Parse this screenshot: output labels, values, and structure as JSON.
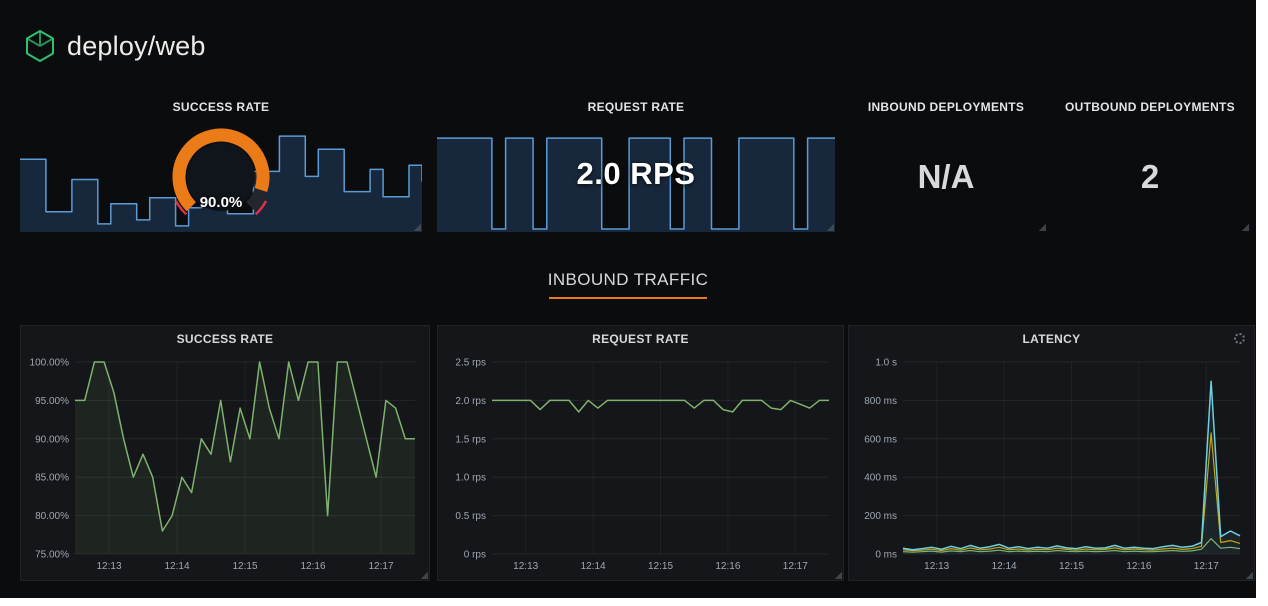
{
  "header": {
    "title": "deploy/web"
  },
  "colors": {
    "background": "#0b0c0e",
    "panel": "#141619",
    "accent_orange": "#eb7b18",
    "spark_line": "#5b9bd5",
    "spark_fill": "#18283c",
    "green": "#7eb26d",
    "yellow": "#cca300",
    "cyan": "#6ed0e0",
    "red": "#e02f44",
    "logo_green": "#2fbf71",
    "text": "#d8d9da",
    "axis_text": "#9fa7b3"
  },
  "top_row": {
    "success_rate": {
      "title": "SUCCESS RATE"
    },
    "request_rate": {
      "title": "REQUEST RATE",
      "value": "2.0 RPS"
    },
    "inbound_deployments": {
      "title": "INBOUND DEPLOYMENTS",
      "value": "N/A"
    },
    "outbound_deployments": {
      "title": "OUTBOUND DEPLOYMENTS",
      "value": "2"
    }
  },
  "gauge": {
    "percent": 90,
    "label": "90.0%",
    "color": "#eb7b18",
    "track_color": "#23262c",
    "face_color": "#10151c",
    "threshold_color": "#e02f44"
  },
  "section": {
    "title": "INBOUND TRAFFIC",
    "underline_color": "#eb7b18"
  },
  "panels": {
    "success_rate_graph": {
      "title": "SUCCESS RATE"
    },
    "request_rate_graph": {
      "title": "REQUEST RATE"
    },
    "latency_graph": {
      "title": "LATENCY"
    }
  },
  "chart_data": {
    "success_rate_sparkline": {
      "type": "area",
      "step": true,
      "ylim": [
        0,
        100
      ],
      "margins": {
        "l": 0,
        "r": 0,
        "t": 3,
        "b": 0
      },
      "series": [
        {
          "name": "series-blue",
          "color": "#5b9bd5",
          "fill": "#18283c",
          "width": 1.5,
          "values": [
            72,
            72,
            20,
            20,
            52,
            52,
            8,
            28,
            28,
            12,
            34,
            34,
            6,
            24,
            46,
            46,
            18,
            18,
            60,
            60,
            95,
            95,
            55,
            82,
            82,
            40,
            40,
            62,
            35,
            35,
            66,
            50
          ]
        }
      ]
    },
    "request_rate_sparkline": {
      "type": "area",
      "step": true,
      "ylim": [
        0,
        100
      ],
      "margins": {
        "l": 0,
        "r": 0,
        "t": 3,
        "b": 0
      },
      "series": [
        {
          "name": "series-blue",
          "color": "#5b9bd5",
          "fill": "#18283c",
          "width": 1.5,
          "values": [
            93,
            93,
            93,
            93,
            3,
            93,
            93,
            3,
            93,
            93,
            93,
            93,
            3,
            3,
            93,
            93,
            93,
            3,
            93,
            93,
            3,
            3,
            93,
            93,
            93,
            93,
            3,
            93,
            93,
            93
          ]
        }
      ]
    },
    "success_rate_graph": {
      "type": "area",
      "title": "SUCCESS RATE",
      "ylim": [
        75,
        100
      ],
      "yticks": [
        {
          "v": 100,
          "label": "100.00%"
        },
        {
          "v": 95,
          "label": "95.00%"
        },
        {
          "v": 90,
          "label": "90.00%"
        },
        {
          "v": 85,
          "label": "85.00%"
        },
        {
          "v": 80,
          "label": "80.00%"
        },
        {
          "v": 75,
          "label": "75.00%"
        }
      ],
      "xticks": [
        "12:13",
        "12:14",
        "12:15",
        "12:16",
        "12:17"
      ],
      "margins": {
        "l": 50,
        "r": 10,
        "t": 8,
        "b": 22
      },
      "series": [
        {
          "name": "series-green",
          "color": "#7eb26d",
          "fill": "rgba(126,178,109,0.10)",
          "width": 1.5,
          "values": [
            95,
            95,
            100,
            100,
            96,
            90,
            85,
            88,
            85,
            78,
            80,
            85,
            83,
            90,
            88,
            95,
            87,
            94,
            90,
            100,
            94,
            90,
            100,
            95,
            100,
            100,
            80,
            100,
            100,
            95,
            90,
            85,
            95,
            94,
            90,
            90
          ]
        }
      ]
    },
    "request_rate_graph": {
      "type": "line",
      "title": "REQUEST RATE",
      "ylim": [
        0,
        2.5
      ],
      "yticks": [
        {
          "v": 2.5,
          "label": "2.5 rps"
        },
        {
          "v": 2.0,
          "label": "2.0 rps"
        },
        {
          "v": 1.5,
          "label": "1.5 rps"
        },
        {
          "v": 1.0,
          "label": "1.0 rps"
        },
        {
          "v": 0.5,
          "label": "0.5 rps"
        },
        {
          "v": 0,
          "label": "0 rps"
        }
      ],
      "xticks": [
        "12:13",
        "12:14",
        "12:15",
        "12:16",
        "12:17"
      ],
      "margins": {
        "l": 50,
        "r": 10,
        "t": 8,
        "b": 22
      },
      "series": [
        {
          "name": "series-green",
          "color": "#7eb26d",
          "width": 1.5,
          "values": [
            2,
            2,
            2,
            2,
            2,
            1.88,
            2,
            2,
            2,
            1.85,
            2,
            1.9,
            2,
            2,
            2,
            2,
            2,
            2,
            2,
            2,
            2,
            1.9,
            2,
            2,
            1.88,
            1.85,
            2,
            2,
            2,
            1.9,
            1.88,
            2,
            1.95,
            1.9,
            2,
            2
          ]
        }
      ]
    },
    "latency_graph": {
      "type": "line",
      "title": "LATENCY",
      "ylim": [
        0,
        1000
      ],
      "yticks": [
        {
          "v": 1000,
          "label": "1.0 s"
        },
        {
          "v": 800,
          "label": "800 ms"
        },
        {
          "v": 600,
          "label": "600 ms"
        },
        {
          "v": 400,
          "label": "400 ms"
        },
        {
          "v": 200,
          "label": "200 ms"
        },
        {
          "v": 0,
          "label": "0 ms"
        }
      ],
      "xticks": [
        "12:13",
        "12:14",
        "12:15",
        "12:16",
        "12:17"
      ],
      "margins": {
        "l": 50,
        "r": 10,
        "t": 8,
        "b": 22
      },
      "series": [
        {
          "name": "series-green",
          "color": "#7eb26d",
          "width": 1.2,
          "values": [
            12,
            10,
            12,
            15,
            10,
            16,
            12,
            18,
            12,
            15,
            20,
            12,
            15,
            12,
            14,
            12,
            18,
            14,
            12,
            15,
            12,
            14,
            18,
            12,
            15,
            12,
            12,
            15,
            18,
            14,
            16,
            25,
            80,
            30,
            35,
            28
          ]
        },
        {
          "name": "series-yellow",
          "color": "#cca300",
          "width": 1.2,
          "values": [
            22,
            18,
            20,
            25,
            18,
            28,
            20,
            32,
            22,
            26,
            35,
            22,
            26,
            20,
            24,
            22,
            30,
            24,
            20,
            26,
            22,
            24,
            32,
            22,
            26,
            22,
            20,
            26,
            30,
            24,
            28,
            40,
            630,
            60,
            70,
            55
          ]
        },
        {
          "name": "series-cyan",
          "color": "#6ed0e0",
          "fill": "rgba(110,208,224,0.08)",
          "width": 1.5,
          "values": [
            30,
            22,
            28,
            35,
            25,
            40,
            28,
            45,
            30,
            38,
            50,
            30,
            38,
            28,
            35,
            30,
            42,
            32,
            28,
            38,
            30,
            32,
            45,
            30,
            35,
            30,
            28,
            38,
            45,
            35,
            40,
            60,
            900,
            90,
            120,
            95
          ]
        }
      ]
    }
  }
}
